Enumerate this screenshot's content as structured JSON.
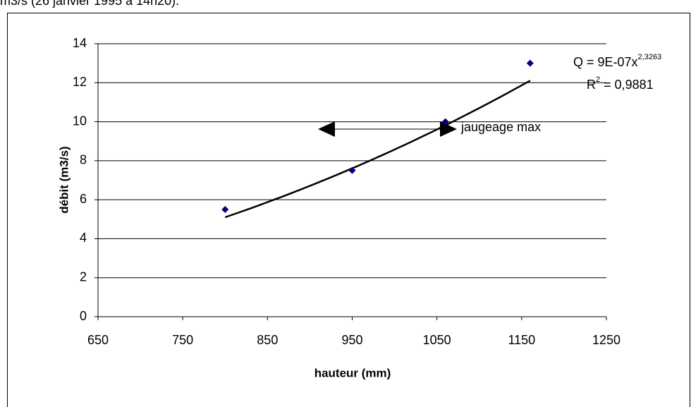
{
  "caption": "m3/s (26 janvier 1995 à 14h20).",
  "chart_data": {
    "type": "scatter",
    "x_label": "hauteur (mm)",
    "y_label": "débit (m3/s)",
    "x": [
      800,
      950,
      1060,
      1160
    ],
    "values": [
      5.5,
      7.5,
      10,
      13
    ],
    "color": "#000080",
    "xlim": [
      650,
      1250
    ],
    "xticks": [
      650,
      750,
      850,
      950,
      1050,
      1150,
      1250
    ],
    "ylim": [
      0,
      14
    ],
    "yticks": [
      0,
      2,
      4,
      6,
      8,
      10,
      12,
      14
    ],
    "grid": true,
    "trendline": {
      "a": 9e-07,
      "b": 2.3263,
      "x": [
        800,
        1160
      ],
      "color": "#000000",
      "equation": [
        "Q = 9E-07x",
        "2,3263"
      ],
      "r_squared": [
        "R",
        "2",
        " = 0,9881"
      ]
    },
    "annotation": "jaugeage max"
  }
}
